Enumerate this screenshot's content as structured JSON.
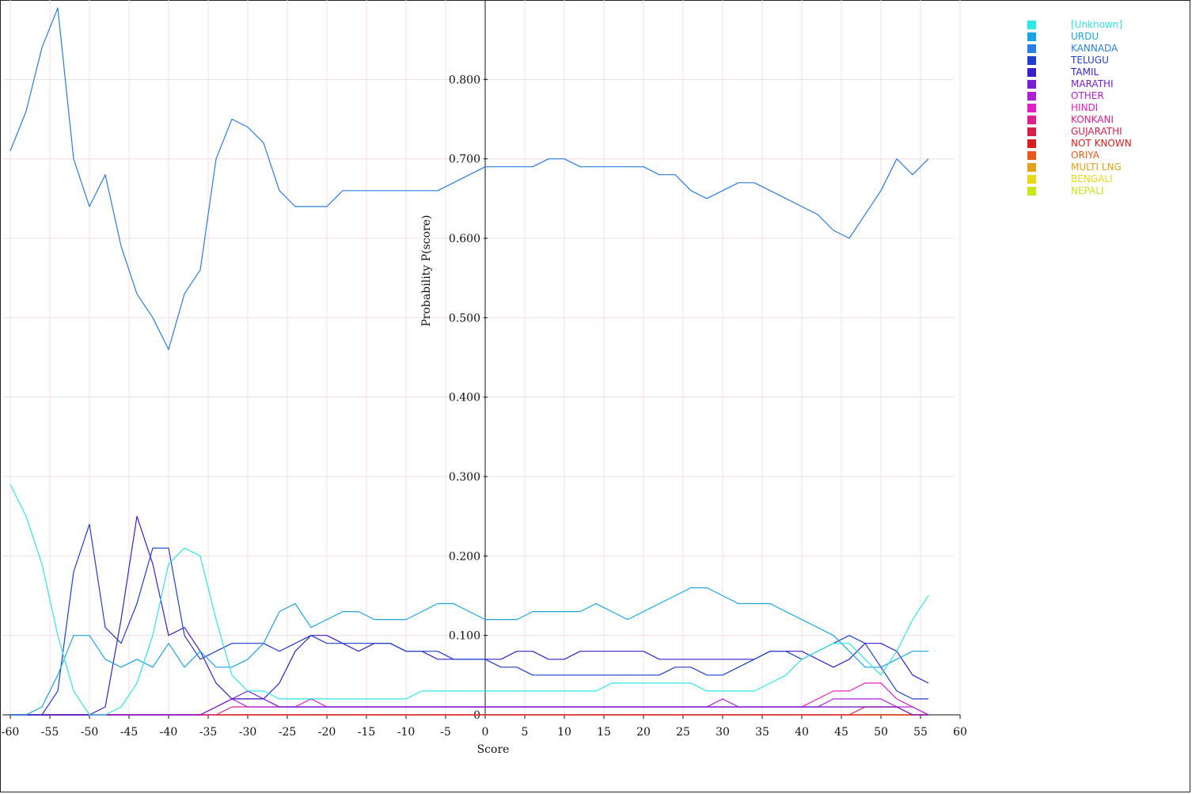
{
  "chart_data": {
    "type": "line",
    "xlabel": "Score",
    "ylabel": "Probability P(score)",
    "xlim": [
      -61,
      60
    ],
    "ylim": [
      0,
      0.9
    ],
    "x_ticks": [
      -60,
      -55,
      -50,
      -45,
      -40,
      -35,
      -30,
      -25,
      -20,
      -15,
      -10,
      -5,
      0,
      5,
      10,
      15,
      20,
      25,
      30,
      35,
      40,
      45,
      50,
      55,
      60
    ],
    "y_ticks": [
      0,
      0.1,
      0.2,
      0.3,
      0.4,
      0.5,
      0.6,
      0.7,
      0.8
    ],
    "y_tick_labels": [
      "0",
      "0.100",
      "0.200",
      "0.300",
      "0.400",
      "0.500",
      "0.600",
      "0.700",
      "0.800"
    ],
    "grid": true,
    "legend_position": "top-right",
    "x": [
      -60,
      -58,
      -56,
      -54,
      -52,
      -50,
      -48,
      -46,
      -44,
      -42,
      -40,
      -38,
      -36,
      -34,
      -32,
      -30,
      -28,
      -26,
      -24,
      -22,
      -20,
      -18,
      -16,
      -14,
      -12,
      -10,
      -8,
      -6,
      -4,
      -2,
      0,
      2,
      4,
      6,
      8,
      10,
      12,
      14,
      16,
      18,
      20,
      22,
      24,
      26,
      28,
      30,
      32,
      34,
      36,
      38,
      40,
      42,
      44,
      46,
      48,
      50,
      52,
      54,
      56
    ],
    "series": [
      {
        "name": "[Unknown]",
        "color": "#2ee6e6",
        "values": [
          0.29,
          0.25,
          0.19,
          0.1,
          0.03,
          0.0,
          0.0,
          0.01,
          0.04,
          0.1,
          0.19,
          0.21,
          0.2,
          0.12,
          0.05,
          0.03,
          0.03,
          0.02,
          0.02,
          0.02,
          0.02,
          0.02,
          0.02,
          0.02,
          0.02,
          0.02,
          0.03,
          0.03,
          0.03,
          0.03,
          0.03,
          0.03,
          0.03,
          0.03,
          0.03,
          0.03,
          0.03,
          0.03,
          0.04,
          0.04,
          0.04,
          0.04,
          0.04,
          0.04,
          0.03,
          0.03,
          0.03,
          0.03,
          0.04,
          0.05,
          0.07,
          0.08,
          0.09,
          0.09,
          0.07,
          0.05,
          0.08,
          0.12,
          0.15
        ]
      },
      {
        "name": "URDU",
        "color": "#1aa3e6",
        "values": [
          0.0,
          0.0,
          0.01,
          0.05,
          0.1,
          0.1,
          0.07,
          0.06,
          0.07,
          0.06,
          0.09,
          0.06,
          0.08,
          0.06,
          0.06,
          0.07,
          0.09,
          0.13,
          0.14,
          0.11,
          0.12,
          0.13,
          0.13,
          0.12,
          0.12,
          0.12,
          0.13,
          0.14,
          0.14,
          0.13,
          0.12,
          0.12,
          0.12,
          0.13,
          0.13,
          0.13,
          0.13,
          0.14,
          0.13,
          0.12,
          0.13,
          0.14,
          0.15,
          0.16,
          0.16,
          0.15,
          0.14,
          0.14,
          0.14,
          0.13,
          0.12,
          0.11,
          0.1,
          0.08,
          0.06,
          0.06,
          0.07,
          0.08,
          0.08
        ]
      },
      {
        "name": "KANNADA",
        "color": "#2a7de1",
        "values": [
          0.71,
          0.76,
          0.84,
          0.89,
          0.7,
          0.64,
          0.68,
          0.59,
          0.53,
          0.5,
          0.46,
          0.53,
          0.56,
          0.7,
          0.75,
          0.74,
          0.72,
          0.66,
          0.64,
          0.64,
          0.64,
          0.66,
          0.66,
          0.66,
          0.66,
          0.66,
          0.66,
          0.66,
          0.67,
          0.68,
          0.69,
          0.69,
          0.69,
          0.69,
          0.7,
          0.7,
          0.69,
          0.69,
          0.69,
          0.69,
          0.69,
          0.68,
          0.68,
          0.66,
          0.65,
          0.66,
          0.67,
          0.67,
          0.66,
          0.65,
          0.64,
          0.63,
          0.61,
          0.6,
          0.63,
          0.66,
          0.7,
          0.68,
          0.7
        ]
      },
      {
        "name": "TELUGU",
        "color": "#1f3fcf",
        "values": [
          0.0,
          0.0,
          0.0,
          0.03,
          0.18,
          0.24,
          0.11,
          0.09,
          0.14,
          0.21,
          0.21,
          0.1,
          0.07,
          0.08,
          0.09,
          0.09,
          0.09,
          0.08,
          0.09,
          0.1,
          0.09,
          0.09,
          0.09,
          0.09,
          0.09,
          0.08,
          0.08,
          0.08,
          0.07,
          0.07,
          0.07,
          0.06,
          0.06,
          0.05,
          0.05,
          0.05,
          0.05,
          0.05,
          0.05,
          0.05,
          0.05,
          0.05,
          0.06,
          0.06,
          0.05,
          0.05,
          0.06,
          0.07,
          0.08,
          0.08,
          0.07,
          0.08,
          0.09,
          0.1,
          0.09,
          0.06,
          0.03,
          0.02,
          0.02
        ]
      },
      {
        "name": "TAMIL",
        "color": "#3a1fc9",
        "values": [
          0.0,
          0.0,
          0.0,
          0.0,
          0.0,
          0.0,
          0.01,
          0.12,
          0.25,
          0.19,
          0.1,
          0.11,
          0.08,
          0.04,
          0.02,
          0.02,
          0.02,
          0.04,
          0.08,
          0.1,
          0.1,
          0.09,
          0.08,
          0.09,
          0.09,
          0.08,
          0.08,
          0.07,
          0.07,
          0.07,
          0.07,
          0.07,
          0.08,
          0.08,
          0.07,
          0.07,
          0.08,
          0.08,
          0.08,
          0.08,
          0.08,
          0.07,
          0.07,
          0.07,
          0.07,
          0.07,
          0.07,
          0.07,
          0.08,
          0.08,
          0.08,
          0.07,
          0.06,
          0.07,
          0.09,
          0.09,
          0.08,
          0.05,
          0.04
        ]
      },
      {
        "name": "MARATHI",
        "color": "#7a1fd6",
        "values": [
          0.0,
          0.0,
          0.0,
          0.0,
          0.0,
          0.0,
          0.0,
          0.0,
          0.0,
          0.0,
          0.0,
          0.0,
          0.0,
          0.01,
          0.02,
          0.03,
          0.02,
          0.01,
          0.01,
          0.01,
          0.01,
          0.01,
          0.01,
          0.01,
          0.01,
          0.01,
          0.01,
          0.01,
          0.01,
          0.01,
          0.01,
          0.01,
          0.01,
          0.01,
          0.01,
          0.01,
          0.01,
          0.01,
          0.01,
          0.01,
          0.01,
          0.01,
          0.01,
          0.01,
          0.01,
          0.01,
          0.01,
          0.01,
          0.01,
          0.01,
          0.01,
          0.01,
          0.01,
          0.01,
          0.01,
          0.01,
          0.01,
          0.0,
          0.0
        ]
      },
      {
        "name": "OTHER",
        "color": "#b01fd6",
        "values": [
          0.0,
          0.0,
          0.0,
          0.0,
          0.0,
          0.0,
          0.0,
          0.0,
          0.0,
          0.0,
          0.0,
          0.0,
          0.0,
          0.01,
          0.02,
          0.01,
          0.01,
          0.01,
          0.01,
          0.01,
          0.01,
          0.01,
          0.01,
          0.01,
          0.01,
          0.01,
          0.01,
          0.01,
          0.01,
          0.01,
          0.01,
          0.01,
          0.01,
          0.01,
          0.01,
          0.01,
          0.01,
          0.01,
          0.01,
          0.01,
          0.01,
          0.01,
          0.01,
          0.01,
          0.01,
          0.02,
          0.01,
          0.01,
          0.01,
          0.01,
          0.01,
          0.01,
          0.02,
          0.02,
          0.02,
          0.02,
          0.01,
          0.01,
          0.0
        ]
      },
      {
        "name": "HINDI",
        "color": "#e01fc8",
        "values": [
          0.0,
          0.0,
          0.0,
          0.0,
          0.0,
          0.0,
          0.0,
          0.0,
          0.0,
          0.0,
          0.0,
          0.0,
          0.0,
          0.01,
          0.02,
          0.02,
          0.02,
          0.01,
          0.01,
          0.02,
          0.01,
          0.01,
          0.01,
          0.01,
          0.01,
          0.01,
          0.01,
          0.01,
          0.01,
          0.01,
          0.01,
          0.01,
          0.01,
          0.01,
          0.01,
          0.01,
          0.01,
          0.01,
          0.01,
          0.01,
          0.01,
          0.01,
          0.01,
          0.01,
          0.01,
          0.01,
          0.01,
          0.01,
          0.01,
          0.01,
          0.01,
          0.02,
          0.03,
          0.03,
          0.04,
          0.04,
          0.02,
          0.01,
          0.0
        ]
      },
      {
        "name": "KONKANI",
        "color": "#e01f8c",
        "values": [
          0.0,
          0.0,
          0.0,
          0.0,
          0.0,
          0.0,
          0.0,
          0.0,
          0.0,
          0.0,
          0.0,
          0.0,
          0.0,
          0.0,
          0.01,
          0.01,
          0.01,
          0.01,
          0.01,
          0.01,
          0.01,
          0.01,
          0.01,
          0.01,
          0.01,
          0.01,
          0.01,
          0.01,
          0.01,
          0.01,
          0.01,
          0.01,
          0.01,
          0.01,
          0.01,
          0.01,
          0.01,
          0.01,
          0.01,
          0.01,
          0.01,
          0.01,
          0.01,
          0.01,
          0.01,
          0.01,
          0.01,
          0.01,
          0.01,
          0.01,
          0.01,
          0.01,
          0.01,
          0.01,
          0.01,
          0.01,
          0.01,
          0.0,
          0.0
        ]
      },
      {
        "name": "GUJARATHI",
        "color": "#d61f4a",
        "values": [
          0.0,
          0.0,
          0.0,
          0.0,
          0.0,
          0.0,
          0.0,
          0.0,
          0.0,
          0.0,
          0.0,
          0.0,
          0.0,
          0.0,
          0.0,
          0.0,
          0.0,
          0.0,
          0.0,
          0.0,
          0.0,
          0.0,
          0.0,
          0.0,
          0.0,
          0.0,
          0.0,
          0.0,
          0.0,
          0.0,
          0.0,
          0.0,
          0.0,
          0.0,
          0.0,
          0.0,
          0.0,
          0.0,
          0.0,
          0.0,
          0.0,
          0.0,
          0.0,
          0.0,
          0.0,
          0.0,
          0.0,
          0.0,
          0.0,
          0.0,
          0.0,
          0.0,
          0.0,
          0.0,
          0.01,
          0.01,
          0.01,
          0.0,
          0.0
        ]
      },
      {
        "name": "NOT KNOWN",
        "color": "#d61f1f",
        "values": [
          0.0,
          0.0,
          0.0,
          0.0,
          0.0,
          0.0,
          0.0,
          0.0,
          0.0,
          0.0,
          0.0,
          0.0,
          0.0,
          0.0,
          0.0,
          0.0,
          0.0,
          0.0,
          0.0,
          0.0,
          0.0,
          0.0,
          0.0,
          0.0,
          0.0,
          0.0,
          0.0,
          0.0,
          0.0,
          0.0,
          0.0,
          0.0,
          0.0,
          0.0,
          0.0,
          0.0,
          0.0,
          0.0,
          0.0,
          0.0,
          0.0,
          0.0,
          0.0,
          0.0,
          0.0,
          0.0,
          0.0,
          0.0,
          0.0,
          0.0,
          0.0,
          0.0,
          0.0,
          0.0,
          0.0,
          0.0,
          0.0,
          0.0,
          0.0
        ]
      },
      {
        "name": "ORIYA",
        "color": "#e8591a",
        "values": [
          0.0,
          0.0,
          0.0,
          0.0,
          0.0,
          0.0,
          0.0,
          0.0,
          0.0,
          0.0,
          0.0,
          0.0,
          0.0,
          0.0,
          0.0,
          0.0,
          0.0,
          0.0,
          0.0,
          0.0,
          0.0,
          0.0,
          0.0,
          0.0,
          0.0,
          0.0,
          0.0,
          0.0,
          0.0,
          0.0,
          0.0,
          0.0,
          0.0,
          0.0,
          0.0,
          0.0,
          0.0,
          0.0,
          0.0,
          0.0,
          0.0,
          0.0,
          0.0,
          0.0,
          0.0,
          0.0,
          0.0,
          0.0,
          0.0,
          0.0,
          0.0,
          0.0,
          0.0,
          0.0,
          0.0,
          0.0,
          0.0,
          0.0,
          0.0
        ]
      },
      {
        "name": "MULTI LNG",
        "color": "#e8a01a",
        "values": [
          0.0,
          0.0,
          0.0,
          0.0,
          0.0,
          0.0,
          0.0,
          0.0,
          0.0,
          0.0,
          0.0,
          0.0,
          0.0,
          0.0,
          0.0,
          0.0,
          0.0,
          0.0,
          0.0,
          0.0,
          0.0,
          0.0,
          0.0,
          0.0,
          0.0,
          0.0,
          0.0,
          0.0,
          0.0,
          0.0,
          0.0,
          0.0,
          0.0,
          0.0,
          0.0,
          0.0,
          0.0,
          0.0,
          0.0,
          0.0,
          0.0,
          0.0,
          0.0,
          0.0,
          0.0,
          0.0,
          0.0,
          0.0,
          0.0,
          0.0,
          0.0,
          0.0,
          0.0,
          0.0,
          0.0,
          0.0,
          0.0,
          0.0,
          0.0
        ]
      },
      {
        "name": "BENGALI",
        "color": "#e8d81a",
        "values": [
          0.0,
          0.0,
          0.0,
          0.0,
          0.0,
          0.0,
          0.0,
          0.0,
          0.0,
          0.0,
          0.0,
          0.0,
          0.0,
          0.0,
          0.0,
          0.0,
          0.0,
          0.0,
          0.0,
          0.0,
          0.0,
          0.0,
          0.0,
          0.0,
          0.0,
          0.0,
          0.0,
          0.0,
          0.0,
          0.0,
          0.0,
          0.0,
          0.0,
          0.0,
          0.0,
          0.0,
          0.0,
          0.0,
          0.0,
          0.0,
          0.0,
          0.0,
          0.0,
          0.0,
          0.0,
          0.0,
          0.0,
          0.0,
          0.0,
          0.0,
          0.0,
          0.0,
          0.0,
          0.0,
          0.0,
          0.0,
          0.0,
          0.0,
          0.0
        ]
      },
      {
        "name": "NEPALI",
        "color": "#c8e61a",
        "values": [
          0.0,
          0.0,
          0.0,
          0.0,
          0.0,
          0.0,
          0.0,
          0.0,
          0.0,
          0.0,
          0.0,
          0.0,
          0.0,
          0.0,
          0.0,
          0.0,
          0.0,
          0.0,
          0.0,
          0.0,
          0.0,
          0.0,
          0.0,
          0.0,
          0.0,
          0.0,
          0.0,
          0.0,
          0.0,
          0.0,
          0.0,
          0.0,
          0.0,
          0.0,
          0.0,
          0.0,
          0.0,
          0.0,
          0.0,
          0.0,
          0.0,
          0.0,
          0.0,
          0.0,
          0.0,
          0.0,
          0.0,
          0.0,
          0.0,
          0.0,
          0.0,
          0.0,
          0.0,
          0.0,
          0.0,
          0.0,
          0.0,
          0.0,
          0.0
        ]
      }
    ]
  }
}
